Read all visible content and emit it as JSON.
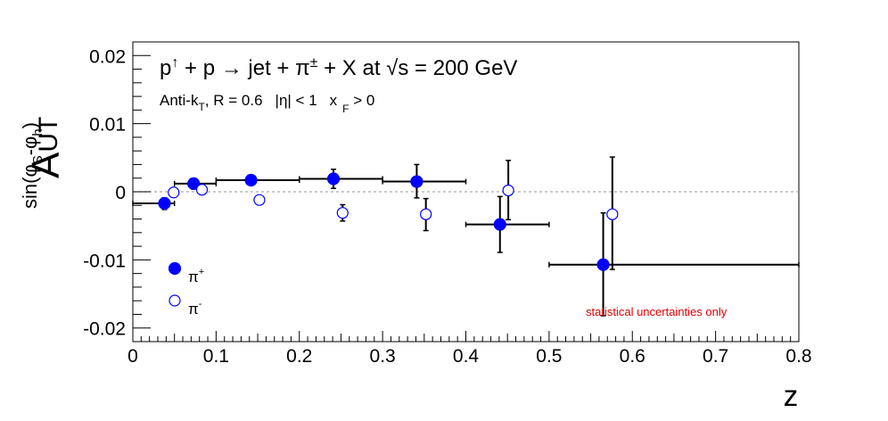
{
  "chart_data": {
    "type": "scatter",
    "title": "p↑ + p → jet + π± + X at √s = 200 GeV",
    "title_parts": {
      "p": "p",
      "up_arrow": "↑",
      "plus1": " + p ",
      "arrow": "→",
      "jet": " jet + π",
      "pm": "±",
      "rest": " + X at ",
      "sqrt": "√",
      "s_equals": "s = 200 GeV"
    },
    "subtitle_parts": {
      "antik": "Anti-k",
      "T": "T",
      "radius": ", R = 0.6",
      "eta": "|η| < 1",
      "x": "x",
      "F": "F",
      "xf_cond": " > 0"
    },
    "xlabel": "z",
    "ylabel_main": "A",
    "ylabel_sub": "UT",
    "ylabel_sup_parts": {
      "sin": "sin(φ",
      "S": "S",
      "minus": "-φ",
      "h": "h",
      "close": ")"
    },
    "xlim": [
      0,
      0.8
    ],
    "ylim": [
      -0.022,
      0.022
    ],
    "xticks": [
      0,
      0.1,
      0.2,
      0.3,
      0.4,
      0.5,
      0.6,
      0.7,
      0.8
    ],
    "xtick_labels": [
      "0",
      "0.1",
      "0.2",
      "0.3",
      "0.4",
      "0.5",
      "0.6",
      "0.7",
      "0.8"
    ],
    "yticks": [
      -0.02,
      -0.01,
      0,
      0.01,
      0.02
    ],
    "ytick_labels": [
      "-0.02",
      "-0.01",
      "0",
      "0.01",
      "0.02"
    ],
    "annotation": "statistical uncertainties only",
    "annotation_color": "#e00000",
    "zero_line_color": "#aaaaaa",
    "legend": {
      "position": "bottom-left",
      "entries": [
        {
          "name": "π",
          "sup": "+",
          "marker": "filled"
        },
        {
          "name": "π",
          "sup": "-",
          "marker": "open"
        }
      ]
    },
    "series": [
      {
        "name": "π+",
        "marker": "filled",
        "color": "#0000ff",
        "points": [
          {
            "x": 0.038,
            "y": -0.0017,
            "xlo": 0.0,
            "xhi": 0.05,
            "ylo": -0.0026,
            "yhi": -0.0009
          },
          {
            "x": 0.073,
            "y": 0.0012,
            "xlo": 0.05,
            "xhi": 0.1,
            "ylo": 0.0004,
            "yhi": 0.0019
          },
          {
            "x": 0.142,
            "y": 0.0017,
            "xlo": 0.1,
            "xhi": 0.2,
            "ylo": 0.0011,
            "yhi": 0.0022
          },
          {
            "x": 0.241,
            "y": 0.0019,
            "xlo": 0.2,
            "xhi": 0.3,
            "ylo": 0.0005,
            "yhi": 0.0033
          },
          {
            "x": 0.341,
            "y": 0.0015,
            "xlo": 0.3,
            "xhi": 0.4,
            "ylo": -0.0009,
            "yhi": 0.004
          },
          {
            "x": 0.441,
            "y": -0.0048,
            "xlo": 0.4,
            "xhi": 0.5,
            "ylo": -0.0089,
            "yhi": -0.0007
          },
          {
            "x": 0.565,
            "y": -0.0107,
            "xlo": 0.5,
            "xhi": 0.8,
            "ylo": -0.0182,
            "yhi": -0.0031
          }
        ]
      },
      {
        "name": "π-",
        "marker": "open",
        "color": "#0000ff",
        "points": [
          {
            "x": 0.049,
            "y": -0.0001,
            "xlo": null,
            "xhi": null,
            "ylo": -0.0008,
            "yhi": 0.0006
          },
          {
            "x": 0.083,
            "y": 0.0003,
            "xlo": null,
            "xhi": null,
            "ylo": -0.0003,
            "yhi": 0.0009
          },
          {
            "x": 0.152,
            "y": -0.0012,
            "xlo": null,
            "xhi": null,
            "ylo": -0.0018,
            "yhi": -0.0006
          },
          {
            "x": 0.252,
            "y": -0.0031,
            "xlo": null,
            "xhi": null,
            "ylo": -0.0043,
            "yhi": -0.0019
          },
          {
            "x": 0.352,
            "y": -0.0033,
            "xlo": null,
            "xhi": null,
            "ylo": -0.0057,
            "yhi": -0.001
          },
          {
            "x": 0.451,
            "y": 0.0002,
            "xlo": null,
            "xhi": null,
            "ylo": -0.0041,
            "yhi": 0.0046
          },
          {
            "x": 0.576,
            "y": -0.0033,
            "xlo": null,
            "xhi": null,
            "ylo": -0.0114,
            "yhi": 0.0051
          }
        ]
      }
    ]
  }
}
